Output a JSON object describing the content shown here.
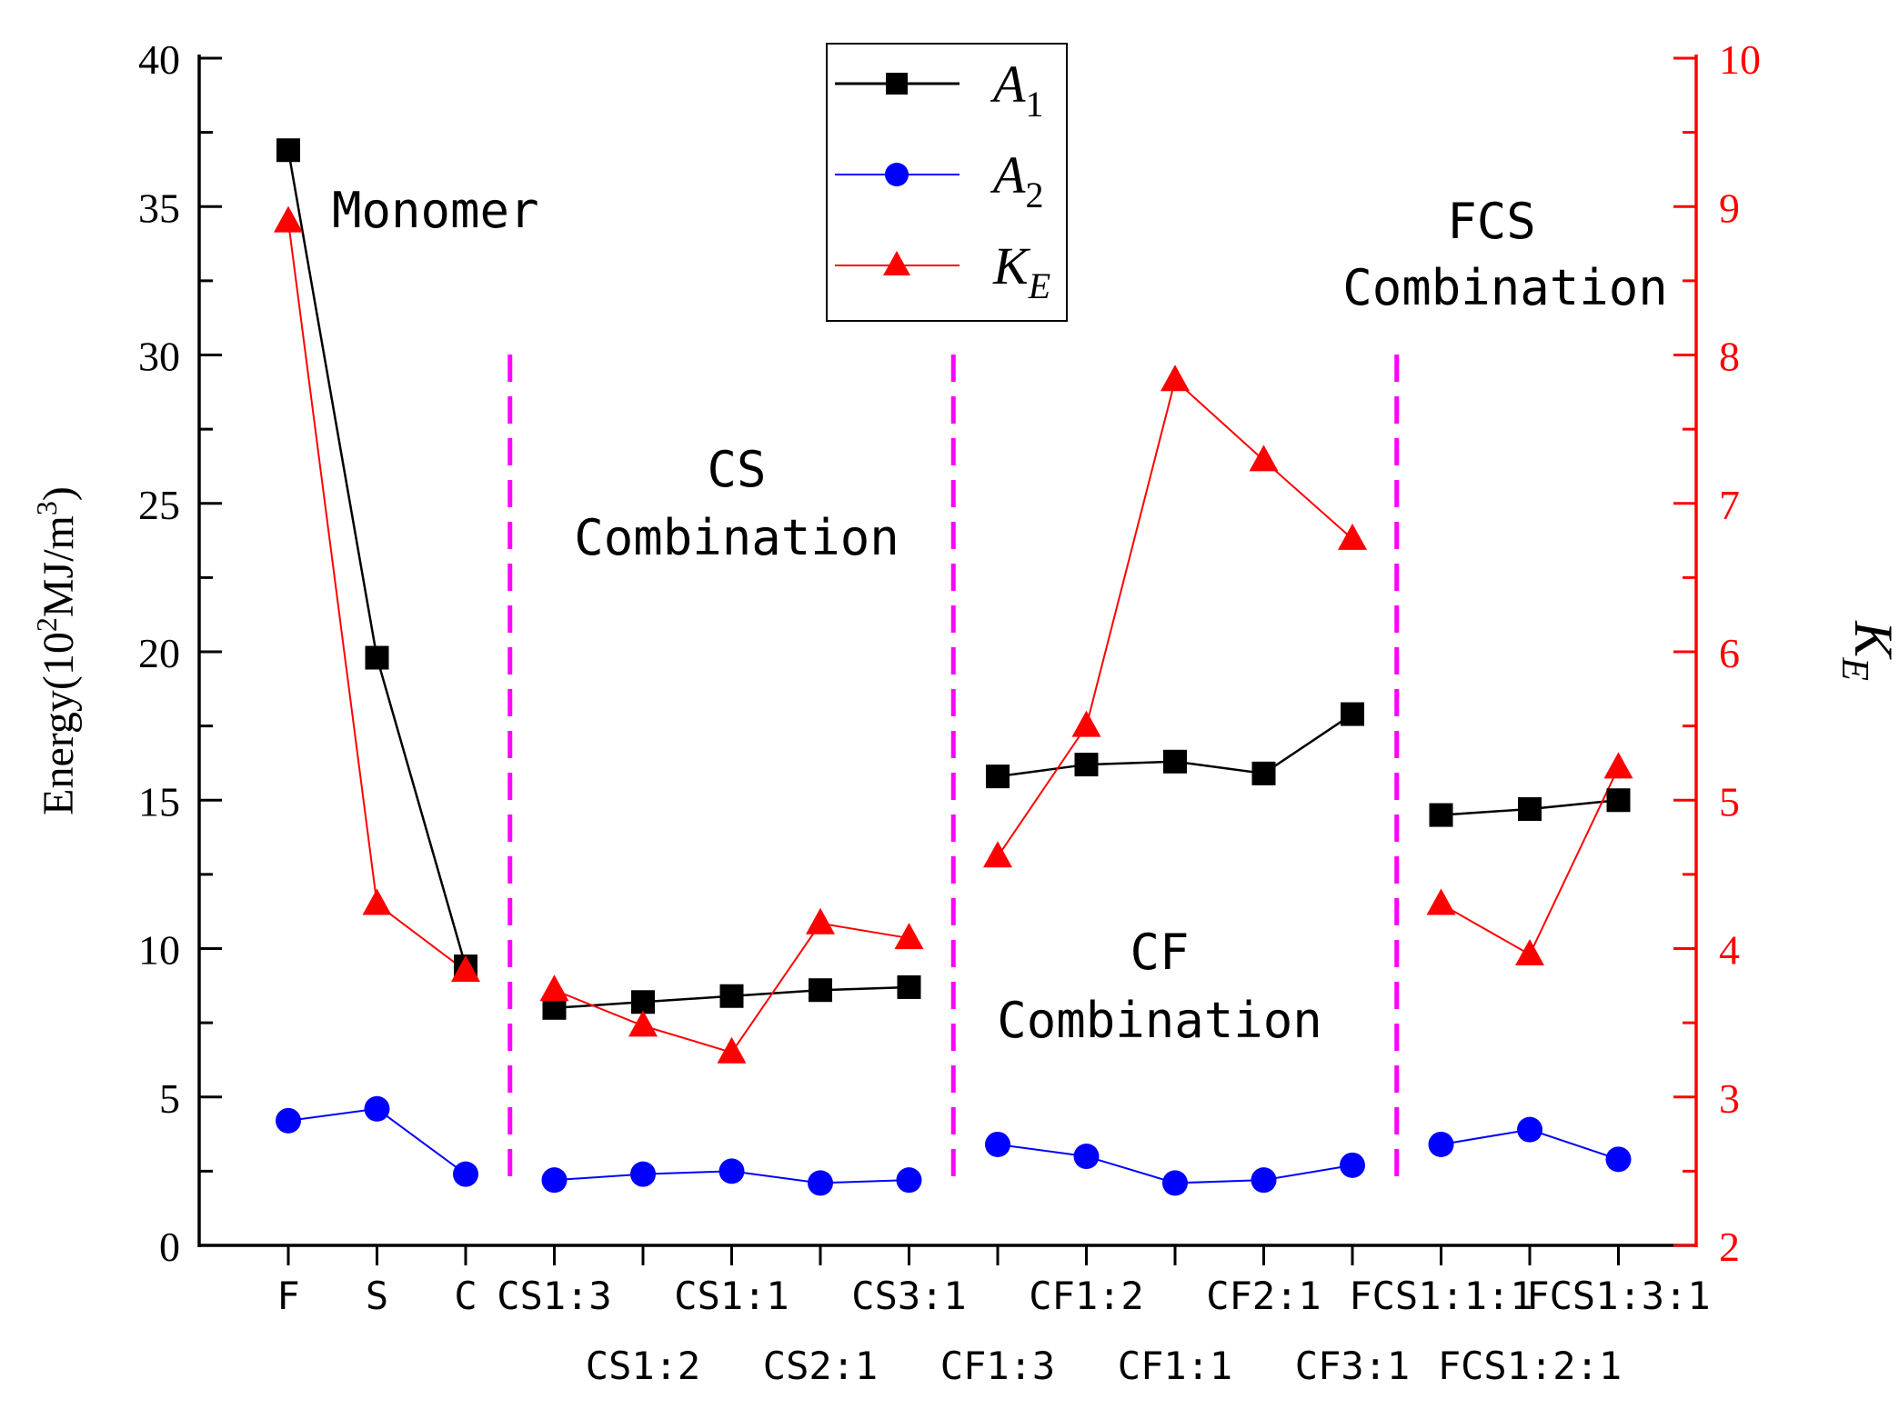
{
  "chart_data": {
    "type": "line",
    "categories": [
      "F",
      "S",
      "C",
      "CS1:3",
      "CS1:2",
      "CS1:1",
      "CS2:1",
      "CS3:1",
      "CF1:3",
      "CF1:2",
      "CF1:1",
      "CF2:1",
      "CF3:1",
      "FCS1:1:1",
      "FCS1:2:1",
      "FCS1:3:1"
    ],
    "left_axis": {
      "label_prefix": "Energy(10",
      "label_sup1": "2",
      "label_mid": "MJ/m",
      "label_sup2": "3",
      "label_suffix": ")",
      "ylim": [
        0,
        40
      ],
      "ticks": [
        "0",
        "5",
        "10",
        "15",
        "20",
        "25",
        "30",
        "35",
        "40"
      ]
    },
    "right_axis": {
      "label_main": "K",
      "label_sub": "E",
      "ylim": [
        2,
        10
      ],
      "ticks": [
        "2",
        "3",
        "4",
        "5",
        "6",
        "7",
        "8",
        "9",
        "10"
      ],
      "color": "#ff0000"
    },
    "series": [
      {
        "name": "A",
        "name_sub": "1",
        "axis": "left",
        "color": "#000000",
        "marker": "square",
        "values": [
          36.9,
          19.8,
          9.4,
          8.0,
          8.2,
          8.4,
          8.6,
          8.7,
          15.8,
          16.2,
          16.3,
          15.9,
          17.9,
          14.5,
          14.7,
          15.0
        ]
      },
      {
        "name": "A",
        "name_sub": "2",
        "axis": "left",
        "color": "#0000ff",
        "marker": "circle",
        "values": [
          4.2,
          4.6,
          2.4,
          2.2,
          2.4,
          2.5,
          2.1,
          2.2,
          3.4,
          3.0,
          2.1,
          2.2,
          2.7,
          3.4,
          3.9,
          2.9
        ]
      },
      {
        "name": "K",
        "name_sub": "E",
        "axis": "right",
        "color": "#ff0000",
        "marker": "triangle",
        "values": [
          8.9,
          4.3,
          3.85,
          3.72,
          3.48,
          3.3,
          4.17,
          4.07,
          4.62,
          5.5,
          7.83,
          7.29,
          6.76,
          4.3,
          3.96,
          5.22
        ]
      }
    ],
    "annotations": {
      "monomer": [
        "Monomer"
      ],
      "cs": [
        "CS",
        "Combination"
      ],
      "cf": [
        "CF",
        "Combination"
      ],
      "fcs": [
        "FCS",
        "Combination"
      ]
    },
    "dividers_after_category_index": [
      2,
      7,
      12
    ],
    "divider_color": "#ff00ff",
    "legend_position": "top-center",
    "grid": false
  }
}
